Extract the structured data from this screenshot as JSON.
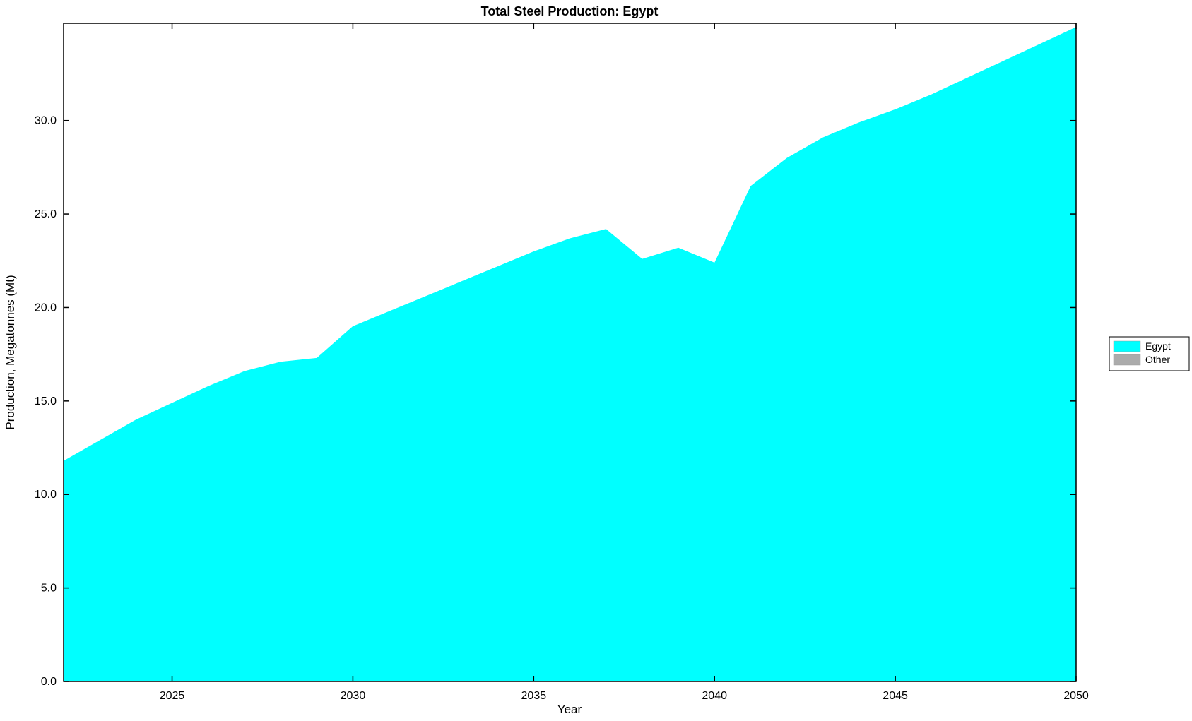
{
  "figure": {
    "background": "#FFFFFF"
  },
  "chart_data": {
    "type": "area",
    "title": "Total Steel Production: Egypt",
    "xlabel": "Year",
    "ylabel": "Production, Megatonnes (Mt)",
    "xlim": [
      2022,
      2050
    ],
    "ylim": [
      0,
      35.2
    ],
    "xticks": [
      2025,
      2030,
      2035,
      2040,
      2045,
      2050
    ],
    "xtick_labels": [
      "2025",
      "2030",
      "2035",
      "2040",
      "2045",
      "2050"
    ],
    "yticks": [
      0,
      5,
      10,
      15,
      20,
      25,
      30
    ],
    "ytick_labels": [
      "0.0",
      "5.0",
      "10.0",
      "15.0",
      "20.0",
      "25.0",
      "30.0"
    ],
    "grid": false,
    "axis_color": "#000000",
    "x": [
      2022,
      2023,
      2024,
      2025,
      2026,
      2027,
      2028,
      2029,
      2030,
      2031,
      2032,
      2033,
      2034,
      2035,
      2036,
      2037,
      2038,
      2039,
      2040,
      2041,
      2042,
      2043,
      2044,
      2045,
      2046,
      2047,
      2048,
      2049,
      2050
    ],
    "series": [
      {
        "name": "Egypt",
        "color": "#00FFFF",
        "values": [
          11.8,
          12.9,
          14.0,
          14.9,
          15.8,
          16.6,
          17.1,
          17.3,
          19.0,
          19.8,
          20.6,
          21.4,
          22.2,
          23.0,
          23.7,
          24.2,
          22.6,
          23.2,
          22.4,
          26.5,
          28.0,
          29.1,
          29.9,
          30.6,
          31.4,
          32.3,
          33.2,
          34.1,
          35.0
        ]
      }
    ],
    "legend": {
      "position": "right-outside",
      "entries": [
        {
          "label": "Egypt",
          "color": "#00FFFF"
        },
        {
          "label": "Other",
          "color": "#ABABAB"
        }
      ]
    }
  }
}
